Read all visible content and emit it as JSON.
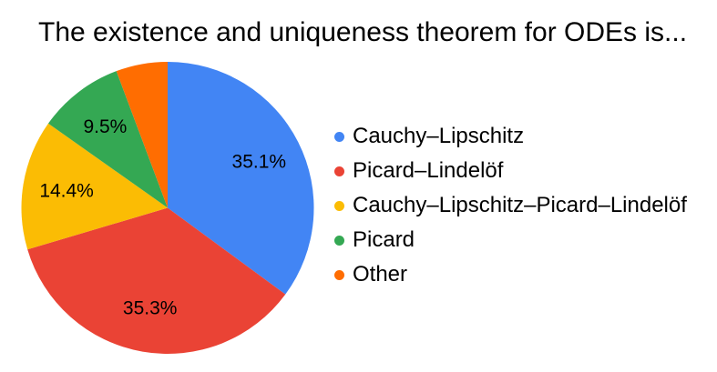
{
  "chart_data": {
    "type": "pie",
    "title": "The existence and uniqueness theorem for ODEs is...",
    "values_unit": "percent",
    "start_angle": "top (12 o'clock), clockwise",
    "legend_position": "right",
    "label_color": "#000000",
    "background_color": "#FFFFFF",
    "slices": [
      {
        "label": "Cauchy–Lipschitz",
        "value": 35.1,
        "display_label": "35.1%",
        "color": "#4285F4"
      },
      {
        "label": "Picard–Lindelöf",
        "value": 35.3,
        "display_label": "35.3%",
        "color": "#EA4335"
      },
      {
        "label": "Cauchy–Lipschitz–Picard–Lindelöf",
        "value": 14.4,
        "display_label": "14.4%",
        "color": "#FBBC04"
      },
      {
        "label": "Picard",
        "value": 9.5,
        "display_label": "9.5%",
        "color": "#34A853"
      },
      {
        "label": "Other",
        "value": 5.7,
        "display_label": "",
        "color": "#FF6D01"
      }
    ]
  }
}
